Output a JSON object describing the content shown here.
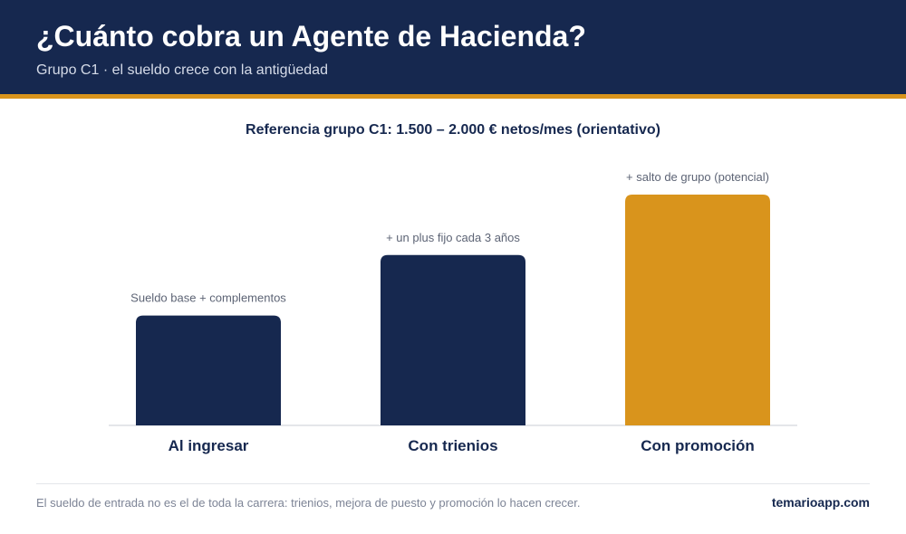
{
  "header": {
    "title": "¿Cuánto cobra un Agente de Hacienda?",
    "subtitle": "Grupo C1 · el sueldo crece con la antigüedad"
  },
  "reference": "Referencia grupo C1: 1.500 – 2.000 € netos/mes (orientativo)",
  "chart_data": {
    "type": "bar",
    "categories": [
      "Al ingresar",
      "Con trienios",
      "Con promoción"
    ],
    "values": [
      1,
      1.55,
      2.1
    ],
    "annotations": [
      "Sueldo base + complementos",
      "+ un plus fijo cada 3 años",
      "+ salto de grupo (potencial)"
    ],
    "colors": [
      "#16284f",
      "#16284f",
      "#d9941c"
    ],
    "title": "",
    "xlabel": "",
    "ylabel": "",
    "ylim": [
      0,
      2.1
    ],
    "grid": false,
    "legend": "none"
  },
  "footer": {
    "note": "El sueldo de entrada no es el de toda la carrera: trienios, mejora de puesto y promoción lo hacen crecer.",
    "brand": "temarioapp.com"
  },
  "colors": {
    "header_bg": "#16284f",
    "accent": "#d9941c",
    "axis_line": "#e4e6ea",
    "annotation_text": "#5d6475"
  }
}
